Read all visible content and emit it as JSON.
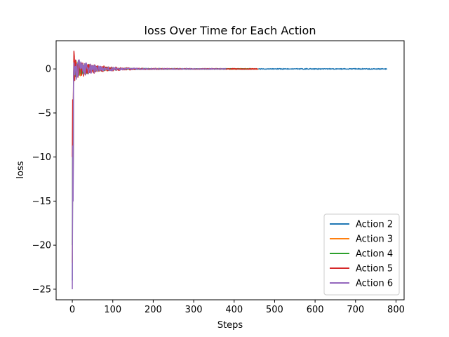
{
  "chart_data": {
    "type": "line",
    "title": "loss Over Time for Each Action",
    "xlabel": "Steps",
    "ylabel": "loss",
    "xlim": [
      -40,
      820
    ],
    "ylim": [
      -26.2,
      3.2
    ],
    "xticks": [
      0,
      100,
      200,
      300,
      400,
      500,
      600,
      700,
      800
    ],
    "yticks": [
      -25,
      -20,
      -15,
      -10,
      -5,
      0
    ],
    "legend_position": "lower-right",
    "series": [
      {
        "name": "Action 2",
        "color": "#1f77b4",
        "length": 778,
        "spike_min": -24.0,
        "spike_max": 0.3,
        "amplitude": 1.2,
        "decay": 35
      },
      {
        "name": "Action 3",
        "color": "#ff7f0e",
        "length": 460,
        "spike_min": -22.0,
        "spike_max": 0.4,
        "amplitude": 1.3,
        "decay": 38
      },
      {
        "name": "Action 4",
        "color": "#2ca02c",
        "length": 440,
        "spike_min": -20.0,
        "spike_max": 0.4,
        "amplitude": 1.3,
        "decay": 40
      },
      {
        "name": "Action 5",
        "color": "#d62728",
        "length": 458,
        "spike_min": -10.0,
        "spike_max": 2.0,
        "amplitude": 1.6,
        "decay": 45
      },
      {
        "name": "Action 6",
        "color": "#9467bd",
        "length": 380,
        "spike_min": -25.0,
        "spike_max": 0.7,
        "amplitude": 1.5,
        "decay": 42
      }
    ]
  }
}
